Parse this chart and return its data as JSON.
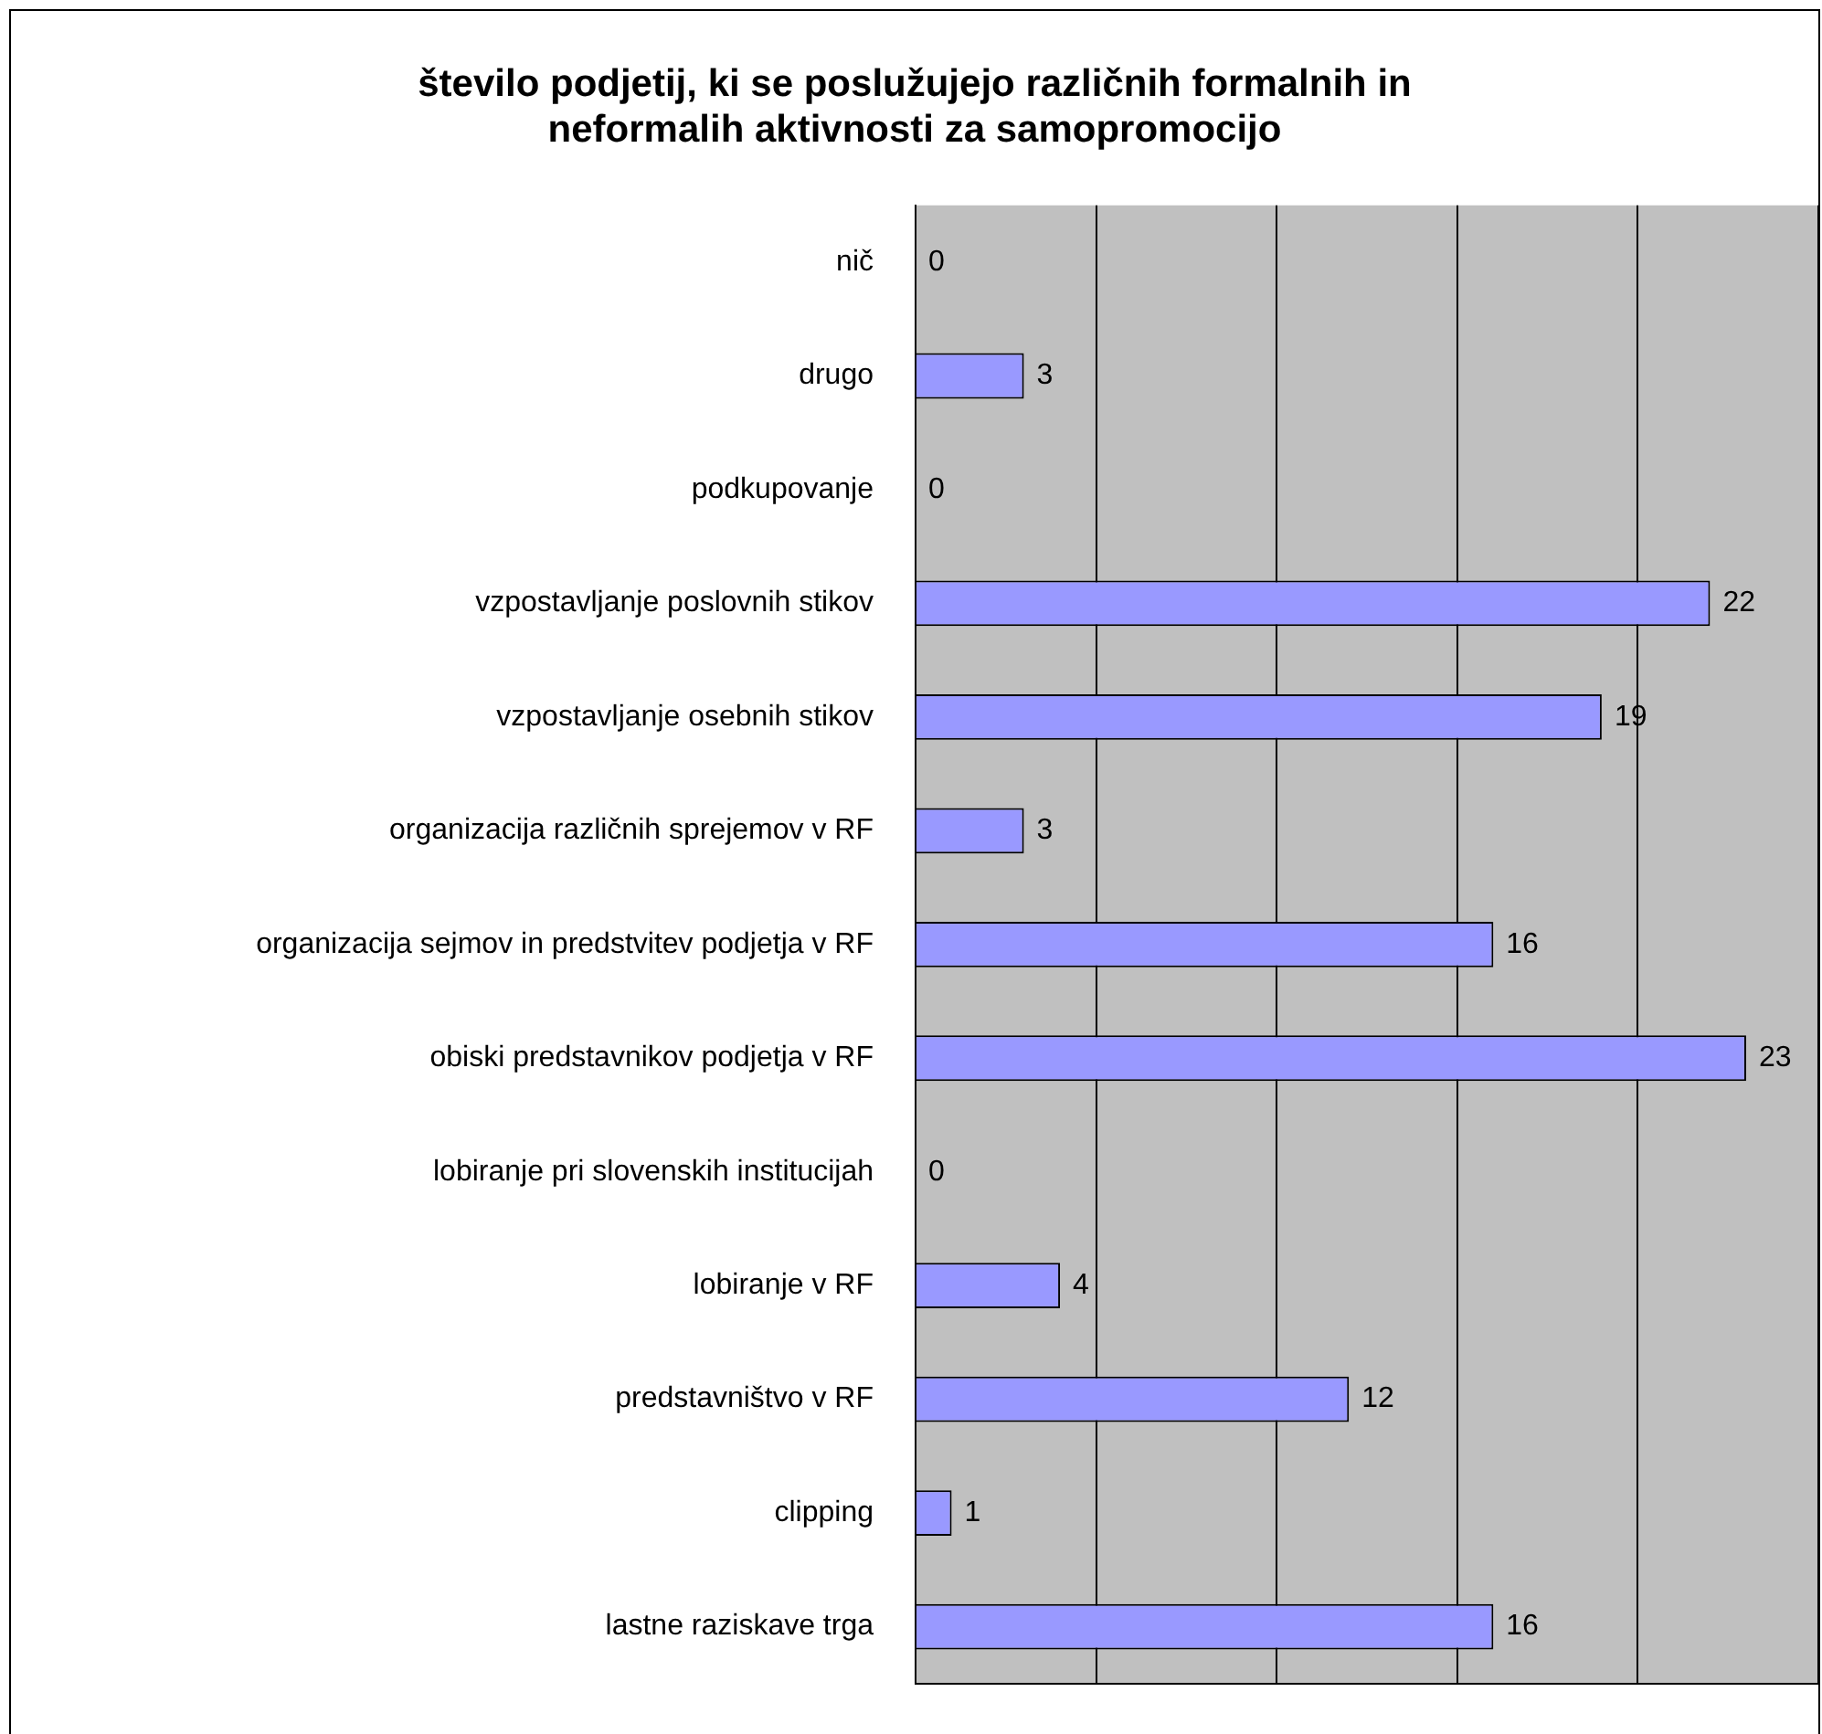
{
  "chart_data": {
    "type": "bar",
    "orientation": "horizontal",
    "title": "število podjetij, ki se poslužujejo različnih formalnih in neformalih aktivnosti za samopromocijo",
    "categories": [
      "nič",
      "drugo",
      "podkupovanje",
      "vzpostavljanje poslovnih stikov",
      "vzpostavljanje osebnih stikov",
      "organizacija različnih sprejemov v RF",
      "organizacija sejmov in predstvitev podjetja v RF",
      "obiski predstavnikov podjetja v RF",
      "lobiranje pri slovenskih institucijah",
      "lobiranje v RF",
      "predstavništvo v RF",
      "clipping",
      "lastne raziskave trga"
    ],
    "values": [
      0,
      3,
      0,
      22,
      19,
      3,
      16,
      23,
      0,
      4,
      12,
      1,
      16
    ],
    "color": "#9999ff",
    "xlim": [
      0,
      25
    ],
    "xticks": [
      {
        "value": 0,
        "label": null
      },
      {
        "value": 5,
        "label": null
      },
      {
        "value": 10,
        "label": null
      },
      {
        "value": 15,
        "label": null
      },
      {
        "value": 20,
        "label": null
      },
      {
        "value": 25,
        "label": null
      }
    ],
    "grid": "x",
    "tick_labels": "y",
    "data_labels": true,
    "legend": false
  }
}
